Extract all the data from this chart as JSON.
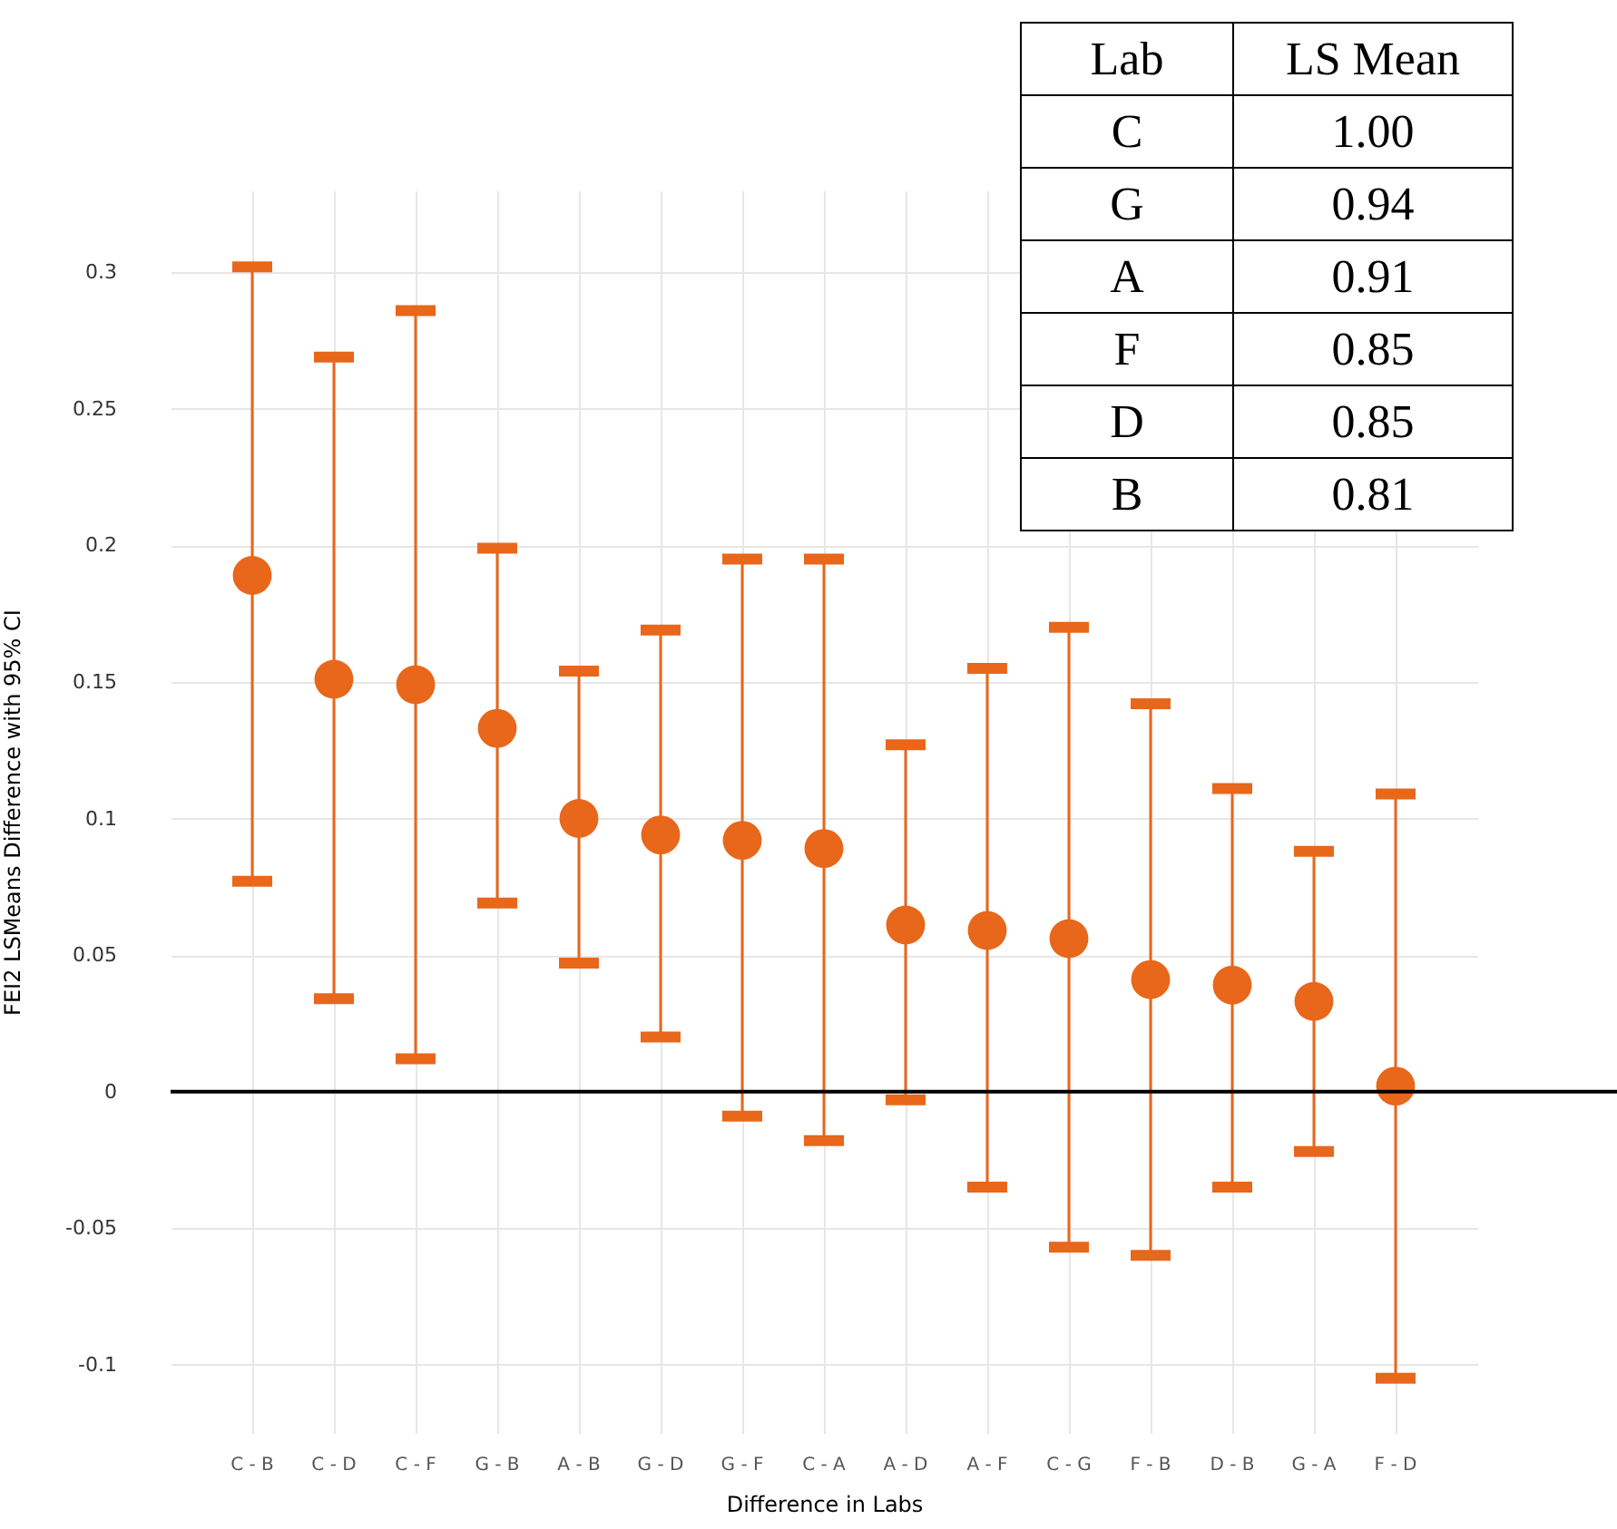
{
  "chart_data": {
    "type": "scatter",
    "xlabel": "Difference in Labs",
    "ylabel": "FEI2 LSMeans Difference with 95% CI",
    "categories": [
      "C - B",
      "C - D",
      "C - F",
      "G - B",
      "A - B",
      "G - D",
      "G - F",
      "C - A",
      "A - D",
      "A - F",
      "C - G",
      "F - B",
      "D - B",
      "G - A",
      "F - D"
    ],
    "series": [
      {
        "color": "#e8671b",
        "values": [
          0.189,
          0.151,
          0.149,
          0.133,
          0.1,
          0.094,
          0.092,
          0.089,
          0.061,
          0.059,
          0.056,
          0.041,
          0.039,
          0.033,
          0.002
        ],
        "errors": [
          [
            0.077,
            0.302
          ],
          [
            0.034,
            0.269
          ],
          [
            0.012,
            0.286
          ],
          [
            0.069,
            0.199
          ],
          [
            0.047,
            0.154
          ],
          [
            0.02,
            0.169
          ],
          [
            -0.009,
            0.195
          ],
          [
            -0.018,
            0.195
          ],
          [
            -0.003,
            0.127
          ],
          [
            -0.035,
            0.155
          ],
          [
            -0.057,
            0.17
          ],
          [
            -0.06,
            0.142
          ],
          [
            -0.035,
            0.111
          ],
          [
            -0.022,
            0.088
          ],
          [
            -0.105,
            0.109
          ]
        ]
      }
    ],
    "ylim": [
      -0.125,
      0.33
    ],
    "yticks": [
      -0.1,
      -0.05,
      0,
      0.05,
      0.1,
      0.15,
      0.2,
      0.25,
      0.3
    ],
    "grid": true,
    "marker": "circle",
    "ref_lines": [
      {
        "axis": "y",
        "value": 0,
        "color": "#000000"
      }
    ],
    "annotations": [
      "Lab",
      "LS Mean",
      "C",
      "1.00",
      "G",
      "0.94",
      "A",
      "0.91",
      "F",
      "0.85",
      "D",
      "0.85",
      "B",
      "0.81"
    ]
  }
}
